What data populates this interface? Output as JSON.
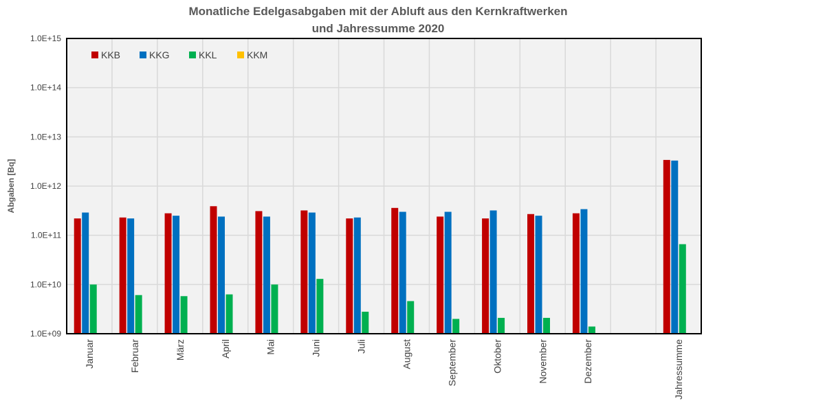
{
  "chart_data": {
    "type": "bar",
    "title": "Monatliche Edelgasabgaben mit der Abluft aus den Kernkraftwerken",
    "subtitle": "und Jahressumme 2020",
    "ylabel": "Abgaben [Bq]",
    "xlabel": "",
    "yscale": "log",
    "ylim": [
      1000000000.0,
      1000000000000000.0
    ],
    "yticks": [
      "1.0E+09",
      "1.0E+10",
      "1.0E+11",
      "1.0E+12",
      "1.0E+13",
      "1.0E+14",
      "1.0E+15"
    ],
    "categories": [
      "Januar",
      "Februar",
      "März",
      "April",
      "Mai",
      "Juni",
      "Juli",
      "August",
      "September",
      "Oktober",
      "November",
      "Dezember",
      "",
      "Jahressumme"
    ],
    "series": [
      {
        "name": "KKB",
        "color": "#c00000",
        "values": [
          220000000000.0,
          230000000000.0,
          280000000000.0,
          390000000000.0,
          310000000000.0,
          320000000000.0,
          220000000000.0,
          360000000000.0,
          240000000000.0,
          220000000000.0,
          270000000000.0,
          280000000000.0,
          null,
          3400000000000.0
        ]
      },
      {
        "name": "KKG",
        "color": "#0070c0",
        "values": [
          290000000000.0,
          220000000000.0,
          250000000000.0,
          240000000000.0,
          240000000000.0,
          290000000000.0,
          230000000000.0,
          300000000000.0,
          300000000000.0,
          320000000000.0,
          250000000000.0,
          340000000000.0,
          null,
          3300000000000.0
        ]
      },
      {
        "name": "KKL",
        "color": "#00b050",
        "values": [
          10000000000.0,
          6100000000.0,
          5800000000.0,
          6300000000.0,
          10000000000.0,
          13000000000.0,
          2800000000.0,
          4600000000.0,
          2000000000.0,
          2100000000.0,
          2100000000.0,
          1400000000.0,
          null,
          66000000000.0
        ]
      },
      {
        "name": "KKM",
        "color": "#ffc000",
        "values": [
          null,
          null,
          null,
          null,
          null,
          null,
          null,
          null,
          null,
          null,
          null,
          null,
          null,
          null
        ]
      }
    ],
    "grid": true,
    "legend_position": "top-left"
  }
}
